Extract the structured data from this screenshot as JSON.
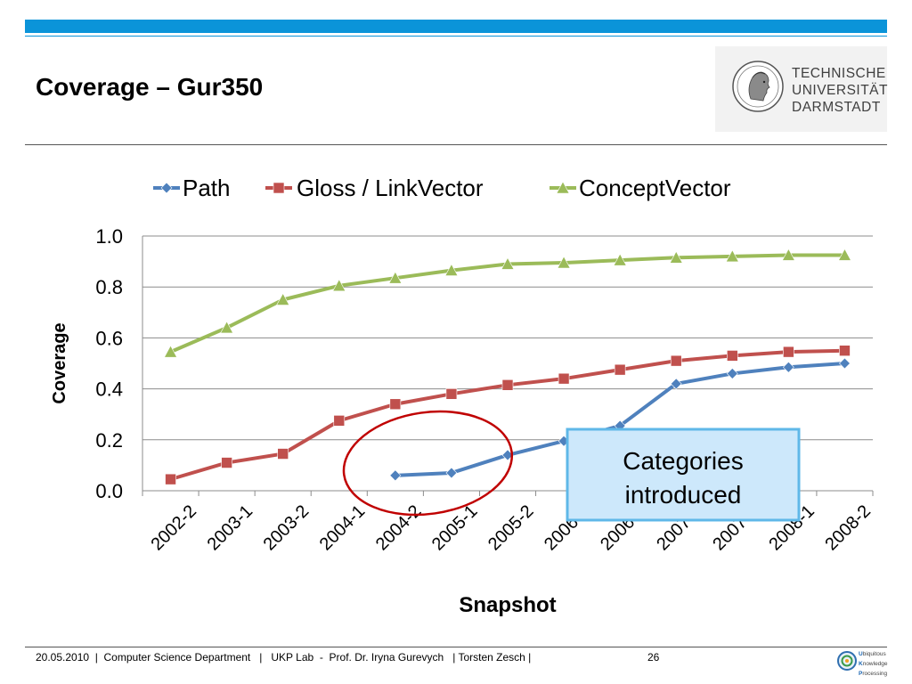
{
  "slide": {
    "title": "Coverage – Gur350",
    "logo": {
      "line1": "TECHNISCHE",
      "line2": "UNIVERSITÄT",
      "line3": "DARMSTADT",
      "seal_icon": "athena-seal-icon"
    },
    "footer": {
      "text": "20.05.2010  |  Computer Science Department   |   UKP Lab  -  Prof. Dr. Iryna Gurevych   | Torsten Zesch |",
      "page": "26",
      "ukp_logo": {
        "icon": "ukp-globe-icon",
        "lines": [
          {
            "initial": "U",
            "rest": "biquitous"
          },
          {
            "initial": "K",
            "rest": "nowledge"
          },
          {
            "initial": "P",
            "rest": "rocessing"
          }
        ]
      }
    },
    "colors": {
      "accent_bar": "#0b94d9",
      "path": "#4f81bd",
      "gloss": "#c0504d",
      "concept": "#9bbb59",
      "annotation_fill": "#cde8fb",
      "annotation_border": "#5fb8e8",
      "circle": "#c00000"
    }
  },
  "chart_data": {
    "type": "line",
    "xlabel": "Snapshot",
    "ylabel": "Coverage",
    "ylim": [
      0,
      1
    ],
    "yticks": [
      "0.0",
      "0.2",
      "0.4",
      "0.6",
      "0.8",
      "1.0"
    ],
    "grid": true,
    "legend_position": "top",
    "categories": [
      "2002-2",
      "2003-1",
      "2003-2",
      "2004-1",
      "2004-2",
      "2005-1",
      "2005-2",
      "2006-1",
      "2006-2",
      "2007-1",
      "2007-2",
      "2008-1",
      "2008-2"
    ],
    "series": [
      {
        "name": "Path",
        "marker": "diamond",
        "values": [
          null,
          null,
          null,
          null,
          0.06,
          0.07,
          0.14,
          0.195,
          0.255,
          0.42,
          0.46,
          0.485,
          0.5
        ]
      },
      {
        "name": "Gloss / LinkVector",
        "marker": "square",
        "values": [
          0.045,
          0.11,
          0.145,
          0.275,
          0.34,
          0.38,
          0.415,
          0.44,
          0.475,
          0.51,
          0.53,
          0.545,
          0.55
        ]
      },
      {
        "name": "ConceptVector",
        "marker": "triangle",
        "values": [
          0.545,
          0.64,
          0.75,
          0.805,
          0.835,
          0.865,
          0.89,
          0.895,
          0.905,
          0.915,
          0.92,
          0.925,
          0.925
        ]
      }
    ],
    "annotation": {
      "text_line1": "Categories",
      "text_line2": "introduced",
      "circled_categories": [
        "2004-2",
        "2005-1"
      ]
    }
  }
}
